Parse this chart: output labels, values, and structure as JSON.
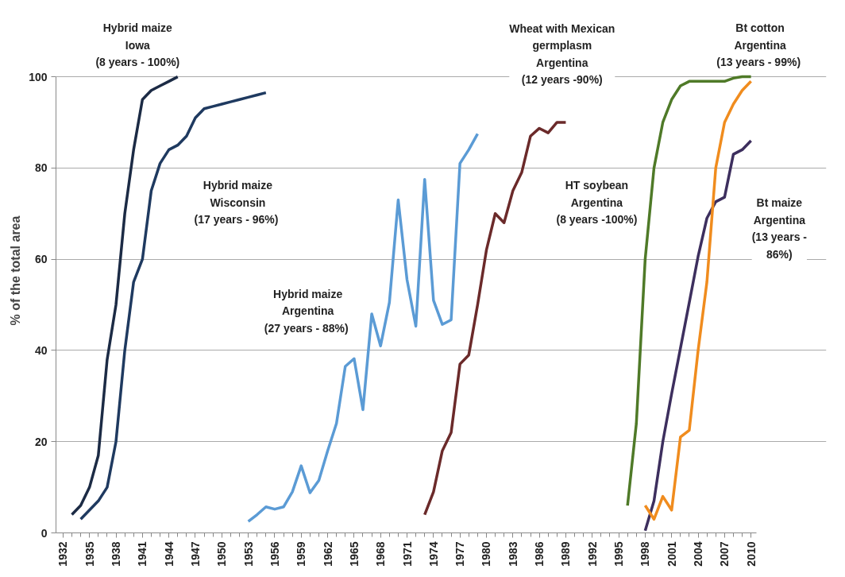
{
  "chart_data": {
    "type": "line",
    "ylabel": "% of the total area",
    "xlim": [
      1931.2,
      2010.6
    ],
    "ylim": [
      0,
      100
    ],
    "xticks": [
      1932,
      1935,
      1938,
      1941,
      1944,
      1947,
      1950,
      1953,
      1956,
      1959,
      1962,
      1965,
      1968,
      1971,
      1974,
      1977,
      1980,
      1983,
      1986,
      1989,
      1992,
      1995,
      1998,
      2001,
      2004,
      2007,
      2010
    ],
    "yticks": [
      0,
      20,
      40,
      60,
      80,
      100
    ],
    "grid": "y",
    "marker": "none",
    "line_style": "solid",
    "series": [
      {
        "color": "#1c2b45",
        "x": [
          1933,
          1934,
          1935,
          1936,
          1937,
          1938,
          1939,
          1940,
          1941,
          1942,
          1943,
          1944,
          1945
        ],
        "values": [
          4,
          6,
          10,
          17,
          38,
          50,
          70,
          84,
          95,
          97,
          98,
          99,
          100
        ]
      },
      {
        "color": "#1f3a60",
        "x": [
          1934,
          1935,
          1936,
          1937,
          1938,
          1939,
          1940,
          1941,
          1942,
          1943,
          1944,
          1945,
          1946,
          1947,
          1948,
          1949,
          1950,
          1951,
          1952,
          1953,
          1954,
          1955
        ],
        "values": [
          3,
          5,
          7,
          10,
          20,
          40,
          55,
          60,
          75,
          81,
          84,
          85,
          87,
          91,
          93,
          93.5,
          94,
          94.5,
          95,
          95.5,
          96,
          96.5
        ]
      },
      {
        "color": "#5b9bd5",
        "x": [
          1953,
          1954,
          1955,
          1956,
          1957,
          1958,
          1959,
          1960,
          1961,
          1962,
          1963,
          1964,
          1965,
          1966,
          1967,
          1968,
          1969,
          1970,
          1971,
          1972,
          1973,
          1974,
          1975,
          1976,
          1977,
          1978,
          1979
        ],
        "values": [
          2.5,
          4,
          5.7,
          5.2,
          5.7,
          9,
          14.7,
          8.8,
          11.5,
          18,
          24,
          36.5,
          38.2,
          27,
          48,
          41,
          50.5,
          73,
          55.5,
          45.3,
          77.5,
          51,
          45.7,
          46.7,
          81,
          84,
          87.5
        ]
      },
      {
        "color": "#6b2a2a",
        "x": [
          1973,
          1974,
          1975,
          1976,
          1977,
          1978,
          1979,
          1980,
          1981,
          1982,
          1983,
          1984,
          1985,
          1986,
          1987,
          1988,
          1989
        ],
        "values": [
          4,
          9,
          18,
          22,
          37,
          39,
          50,
          62,
          70,
          68,
          75,
          79,
          87,
          88.7,
          87.7,
          90,
          90
        ]
      },
      {
        "color": "#4f7a28",
        "x": [
          1996,
          1997,
          1998,
          1999,
          2000,
          2001,
          2002,
          2003,
          2004,
          2005,
          2006,
          2007,
          2008,
          2009,
          2010
        ],
        "values": [
          6,
          24,
          60,
          80,
          90,
          95,
          98,
          99,
          99,
          99,
          99,
          99,
          99.7,
          100,
          100
        ]
      },
      {
        "color": "#3d2f5e",
        "x": [
          1998,
          1999,
          2000,
          2001,
          2002,
          2003,
          2004,
          2005,
          2006,
          2007,
          2008,
          2009,
          2010
        ],
        "values": [
          0.5,
          7,
          20,
          30.5,
          40.5,
          50.5,
          60.6,
          69,
          72.6,
          73.6,
          83,
          84,
          86
        ]
      },
      {
        "color": "#f08c1e",
        "x": [
          1998,
          1999,
          2000,
          2001,
          2002,
          2003,
          2004,
          2005,
          2006,
          2007,
          2008,
          2009,
          2010
        ],
        "values": [
          6,
          3,
          8,
          5,
          21,
          22.5,
          40,
          55,
          80,
          90,
          94,
          97,
          99
        ]
      }
    ],
    "annotations": [
      "Hybrid maize\nIowa\n(8 years - 100%)",
      "Hybrid maize\nWisconsin\n(17 years -  96%)",
      "Hybrid maize\nArgentina\n(27 years -  88%)",
      "Wheat with Mexican\ngermplasm\nArgentina\n(12 years -90%)",
      "HT soybean\nArgentina\n(8 years -100%)",
      "Bt cotton\nArgentina\n(13 years -  99%)",
      "Bt maize\nArgentina\n(13 years -\n86%)"
    ]
  }
}
